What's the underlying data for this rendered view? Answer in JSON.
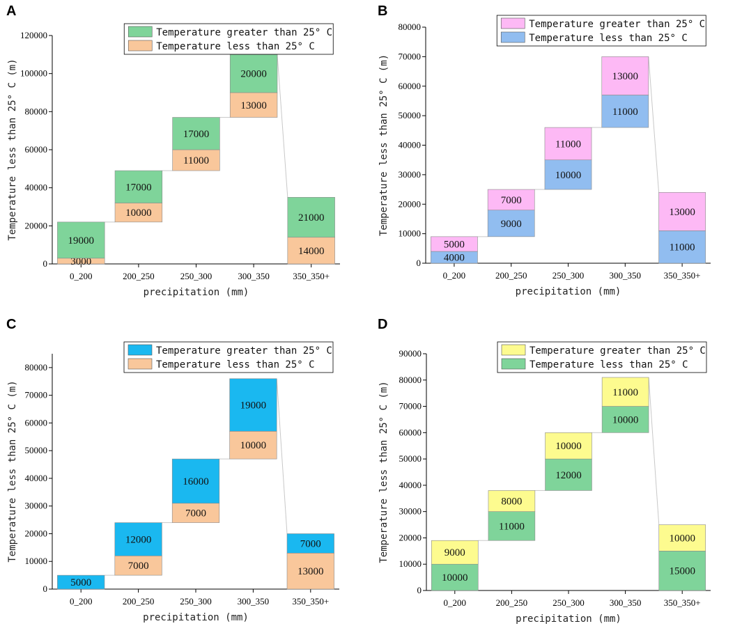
{
  "chart_data": [
    {
      "panel": "A",
      "type": "waterfall-stacked-bar",
      "categories": [
        "0_200",
        "200_250",
        "250_300",
        "300_350",
        "350_350+"
      ],
      "series": [
        {
          "name": "Temperature less than 25° C",
          "color": "#f9c79b",
          "values": [
            3000,
            10000,
            11000,
            13000,
            14000
          ]
        },
        {
          "name": "Temperature greater than 25° C",
          "color": "#7fd49a",
          "values": [
            19000,
            17000,
            17000,
            20000,
            21000
          ]
        }
      ],
      "bases": [
        0,
        22000,
        49000,
        77000,
        0
      ],
      "xlabel": "precipitation (mm)",
      "ylabel": "Temperature less than 25° C (m)",
      "ylim": [
        0,
        120000
      ],
      "yticks": [
        0,
        20000,
        40000,
        60000,
        80000,
        100000,
        120000
      ],
      "legend_order": [
        1,
        0
      ]
    },
    {
      "panel": "B",
      "type": "waterfall-stacked-bar",
      "categories": [
        "0_200",
        "200_250",
        "250_300",
        "300_350",
        "350_350+"
      ],
      "series": [
        {
          "name": "Temperature less than 25° C",
          "color": "#91bdf0",
          "values": [
            4000,
            9000,
            10000,
            11000,
            11000
          ]
        },
        {
          "name": "Temperature greater than 25° C",
          "color": "#fdb9f5",
          "values": [
            5000,
            7000,
            11000,
            13000,
            13000
          ]
        }
      ],
      "bases": [
        0,
        9000,
        25000,
        46000,
        0
      ],
      "xlabel": "precipitation (mm)",
      "ylabel": "Temperature less than 25° C (m)",
      "ylim": [
        0,
        80000
      ],
      "yticks": [
        0,
        10000,
        20000,
        30000,
        40000,
        50000,
        60000,
        70000,
        80000
      ],
      "legend_order": [
        1,
        0
      ]
    },
    {
      "panel": "C",
      "type": "waterfall-stacked-bar",
      "categories": [
        "0_200",
        "200_250",
        "250_300",
        "300_350",
        "350_350+"
      ],
      "series": [
        {
          "name": "Temperature less than 25° C",
          "color": "#f9c79b",
          "values": [
            0,
            7000,
            7000,
            10000,
            13000
          ]
        },
        {
          "name": "Temperature greater than 25° C",
          "color": "#1ab8f0",
          "values": [
            5000,
            12000,
            16000,
            19000,
            7000
          ]
        }
      ],
      "bases": [
        0,
        5000,
        24000,
        47000,
        0
      ],
      "xlabel": "precipitation (mm)",
      "ylabel": "Temperature less than 25° C (m)",
      "ylim": [
        0,
        85000
      ],
      "yticks": [
        0,
        10000,
        20000,
        30000,
        40000,
        50000,
        60000,
        70000,
        80000
      ],
      "legend_order": [
        1,
        0
      ]
    },
    {
      "panel": "D",
      "type": "waterfall-stacked-bar",
      "categories": [
        "0_200",
        "200_250",
        "250_300",
        "300_350",
        "350_350+"
      ],
      "series": [
        {
          "name": "Temperature less than 25° C",
          "color": "#7fd49a",
          "values": [
            10000,
            11000,
            12000,
            10000,
            15000
          ]
        },
        {
          "name": "Temperature greater than 25° C",
          "color": "#fdfb8f",
          "values": [
            9000,
            8000,
            10000,
            11000,
            10000
          ]
        }
      ],
      "bases": [
        0,
        19000,
        38000,
        60000,
        0
      ],
      "xlabel": "precipitation (mm)",
      "ylabel": "Temperature less than 25° C (m)",
      "ylim": [
        0,
        90000
      ],
      "yticks": [
        0,
        10000,
        20000,
        30000,
        40000,
        50000,
        60000,
        70000,
        80000,
        90000
      ],
      "legend_order": [
        1,
        0
      ]
    }
  ]
}
